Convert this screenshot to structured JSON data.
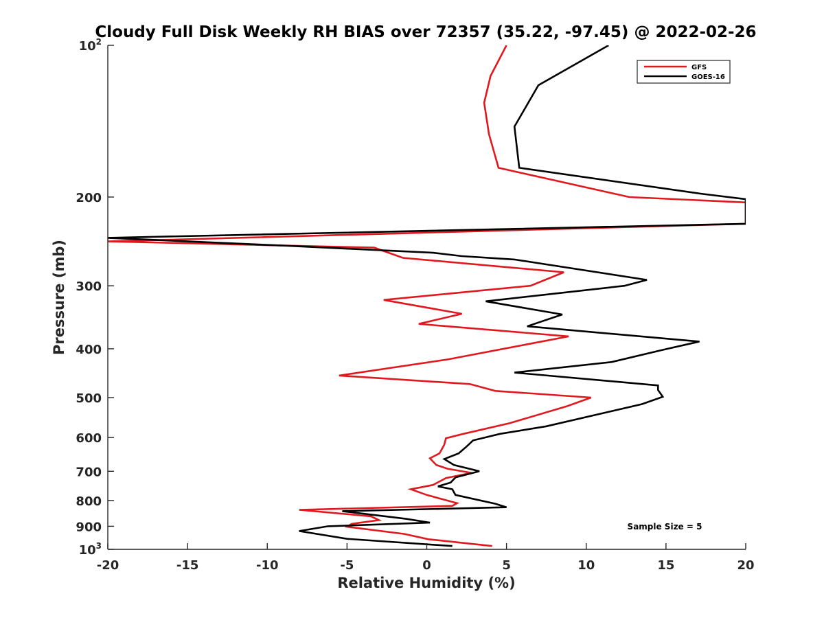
{
  "chart_data": {
    "type": "line",
    "title": "Cloudy Full Disk Weekly RH BIAS over 72357 (35.22, -97.45) @ 2022-02-26",
    "xlabel": "Relative Humidity (%)",
    "ylabel": "Pressure (mb)",
    "xlim": [
      -20,
      20
    ],
    "ylim": [
      100,
      1000
    ],
    "y_scale": "log",
    "y_reversed": true,
    "grid": false,
    "legend_position": "top-right",
    "x_ticks": [
      "-20",
      "-15",
      "-10",
      "-5",
      "0",
      "5",
      "10",
      "15",
      "20"
    ],
    "x_tick_values": [
      -20,
      -15,
      -10,
      -5,
      0,
      5,
      10,
      15,
      20
    ],
    "y_ticks": [
      {
        "value": 100,
        "base": "10",
        "exp": "2"
      },
      {
        "value": 200,
        "base": "200",
        "exp": ""
      },
      {
        "value": 300,
        "base": "300",
        "exp": ""
      },
      {
        "value": 400,
        "base": "400",
        "exp": ""
      },
      {
        "value": 500,
        "base": "500",
        "exp": ""
      },
      {
        "value": 600,
        "base": "600",
        "exp": ""
      },
      {
        "value": 700,
        "base": "700",
        "exp": ""
      },
      {
        "value": 800,
        "base": "800",
        "exp": ""
      },
      {
        "value": 900,
        "base": "900",
        "exp": ""
      },
      {
        "value": 1000,
        "base": "10",
        "exp": "3"
      }
    ],
    "annotation": "Sample Size = 5",
    "series": [
      {
        "name": "GFS",
        "color": "#e0191f",
        "points": [
          [
            5.0,
            100
          ],
          [
            4.0,
            115
          ],
          [
            3.6,
            130
          ],
          [
            3.9,
            150
          ],
          [
            4.5,
            175
          ],
          [
            12.7,
            200
          ],
          [
            20,
            205
          ],
          [
            20,
            226
          ],
          [
            -20,
            245
          ],
          [
            -3.3,
            252
          ],
          [
            -1.5,
            264
          ],
          [
            8.6,
            282
          ],
          [
            6.5,
            300
          ],
          [
            -2.7,
            320
          ],
          [
            2.2,
            341
          ],
          [
            -0.5,
            357
          ],
          [
            8.9,
            378
          ],
          [
            1.3,
            420
          ],
          [
            -5.5,
            452
          ],
          [
            2.7,
            470
          ],
          [
            4.3,
            485
          ],
          [
            10.3,
            500
          ],
          [
            8.8,
            520
          ],
          [
            5.2,
            562
          ],
          [
            2.3,
            590
          ],
          [
            1.2,
            602
          ],
          [
            1.1,
            620
          ],
          [
            0.8,
            645
          ],
          [
            0.2,
            660
          ],
          [
            0.6,
            680
          ],
          [
            1.3,
            692
          ],
          [
            2.8,
            705
          ],
          [
            1.2,
            722
          ],
          [
            0.4,
            745
          ],
          [
            -1.0,
            760
          ],
          [
            0.0,
            780
          ],
          [
            1.9,
            810
          ],
          [
            1.6,
            820
          ],
          [
            -8.0,
            835
          ],
          [
            -3.5,
            860
          ],
          [
            -3.0,
            875
          ],
          [
            -4.7,
            890
          ],
          [
            -5.0,
            902
          ],
          [
            -1.4,
            932
          ],
          [
            0.1,
            955
          ],
          [
            4.1,
            985
          ]
        ]
      },
      {
        "name": "GOES-16",
        "color": "#000000",
        "points": [
          [
            11.4,
            100
          ],
          [
            7.0,
            120
          ],
          [
            5.5,
            145
          ],
          [
            5.8,
            175
          ],
          [
            17.2,
            197
          ],
          [
            20,
            202
          ],
          [
            20,
            226
          ],
          [
            -20,
            241
          ],
          [
            -8.6,
            250
          ],
          [
            0.4,
            258
          ],
          [
            2.2,
            262
          ],
          [
            5.5,
            266
          ],
          [
            13.8,
            292
          ],
          [
            12.4,
            300
          ],
          [
            3.7,
            322
          ],
          [
            8.5,
            342
          ],
          [
            6.3,
            361
          ],
          [
            17.1,
            387
          ],
          [
            14.8,
            402
          ],
          [
            11.6,
            425
          ],
          [
            5.5,
            446
          ],
          [
            14.5,
            473
          ],
          [
            14.5,
            483
          ],
          [
            14.8,
            498
          ],
          [
            13.5,
            515
          ],
          [
            7.5,
            570
          ],
          [
            4.6,
            590
          ],
          [
            2.9,
            608
          ],
          [
            2.5,
            625
          ],
          [
            2.0,
            645
          ],
          [
            1.1,
            662
          ],
          [
            1.7,
            680
          ],
          [
            3.3,
            700
          ],
          [
            1.8,
            720
          ],
          [
            1.5,
            737
          ],
          [
            0.7,
            750
          ],
          [
            1.6,
            760
          ],
          [
            1.8,
            780
          ],
          [
            4.3,
            812
          ],
          [
            5.0,
            825
          ],
          [
            -5.3,
            840
          ],
          [
            -1.3,
            870
          ],
          [
            0.2,
            885
          ],
          [
            -6.2,
            900
          ],
          [
            -8.0,
            920
          ],
          [
            -5.0,
            953
          ],
          [
            1.6,
            985
          ]
        ]
      }
    ]
  }
}
